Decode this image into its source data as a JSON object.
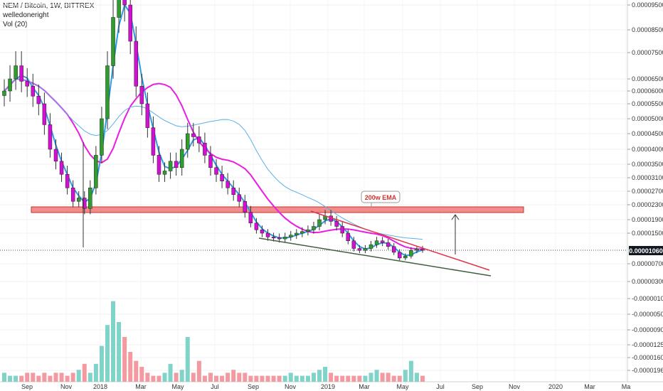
{
  "header": {
    "title": "NEM / Bitcoin, 1W, BITTREX",
    "author": "welledoneright",
    "indicator": "Vol (20)"
  },
  "annotation": {
    "ema_label": "200w EMA"
  },
  "last_price": "0.00001060",
  "colors": {
    "up": "#26a69a",
    "up_body": "#2e9d2e",
    "down": "#d40fd4",
    "resistance_zone": "#f28c8c",
    "ema_magenta": "#e91ee0",
    "ema_blue": "#2f9be6",
    "ema_lightblue": "#5ab0e8",
    "trend_red": "#e0344a",
    "trend_green": "#3f5f3f",
    "vol_up": "#7fd3c9",
    "vol_down": "#f29aa0"
  },
  "chart_data": {
    "type": "candlestick",
    "price_ticks": [
      "0.00009500",
      "0.00008500",
      "0.00007500",
      "0.00006500",
      "0.00006000",
      "0.00005500",
      "0.00005000",
      "0.00004500",
      "0.00004000",
      "0.00003500",
      "0.00003100",
      "0.00002700",
      "0.00002300",
      "0.00001900",
      "0.00001500",
      "0.00000700",
      "0.00000300",
      "-0.00000100",
      "-0.00000500",
      "-0.00000900",
      "-0.00001250",
      "-0.00001600",
      "-0.00001960"
    ],
    "time_ticks": [
      "Sep",
      "Nov",
      "2018",
      "Mar",
      "May",
      "Jul",
      "Sep",
      "Nov",
      "2019",
      "Mar",
      "May",
      "Jul",
      "Sep",
      "Nov",
      "2020",
      "Mar",
      "Ma"
    ],
    "series": [
      {
        "name": "price",
        "values": [
          6e-05,
          6.5e-05,
          7e-05,
          6.4e-05,
          6.2e-05,
          5.8e-05,
          5.5e-05,
          4.8e-05,
          4e-05,
          3.6e-05,
          3.2e-05,
          2.8e-05,
          2.4e-05,
          2.5e-05,
          2.2e-05,
          2.8e-05,
          3.8e-05,
          5e-05,
          7e-05,
          9e-05,
          0.0001,
          9.5e-05,
          8e-05,
          6.2e-05,
          5.5e-05,
          4.7e-05,
          3.8e-05,
          3.2e-05,
          3.3e-05,
          3.6e-05,
          3.4e-05,
          4e-05,
          4.5e-05,
          4.4e-05,
          4.2e-05,
          3.8e-05,
          3.4e-05,
          3.2e-05,
          3e-05,
          2.8e-05,
          2.6e-05,
          2.4e-05,
          2.1e-05,
          1.8e-05,
          1.6e-05,
          1.5e-05,
          1.4e-05,
          1.38e-05,
          1.35e-05,
          1.4e-05,
          1.45e-05,
          1.5e-05,
          1.55e-05,
          1.6e-05,
          1.7e-05,
          1.9e-05,
          2e-05,
          1.85e-05,
          1.7e-05,
          1.5e-05,
          1.3e-05,
          1.1e-05,
          1.05e-05,
          1.1e-05,
          1.2e-05,
          1.3e-05,
          1.25e-05,
          1.15e-05,
          1e-05,
          8.5e-06,
          9e-06,
          1.05e-05,
          1.08e-05,
          1.06e-05
        ]
      },
      {
        "name": "volume",
        "values": [
          3,
          2,
          2,
          2,
          3,
          3,
          2,
          3,
          2,
          3,
          3,
          2,
          3,
          4,
          6,
          3,
          6,
          12,
          19,
          27,
          20,
          15,
          10,
          7,
          5,
          3,
          2,
          2,
          3,
          6,
          3,
          4,
          15,
          3,
          7,
          2,
          3,
          2,
          2,
          3,
          4,
          3,
          3,
          2,
          2,
          2,
          2,
          2,
          2,
          2,
          3,
          2,
          2,
          2,
          3,
          4,
          5,
          3,
          2,
          2,
          2,
          2,
          2,
          2,
          3,
          4,
          3,
          3,
          2,
          2,
          4,
          7,
          3,
          2
        ]
      }
    ],
    "support_resistance_zone": [
      1.95e-05,
      2.17e-05
    ]
  }
}
